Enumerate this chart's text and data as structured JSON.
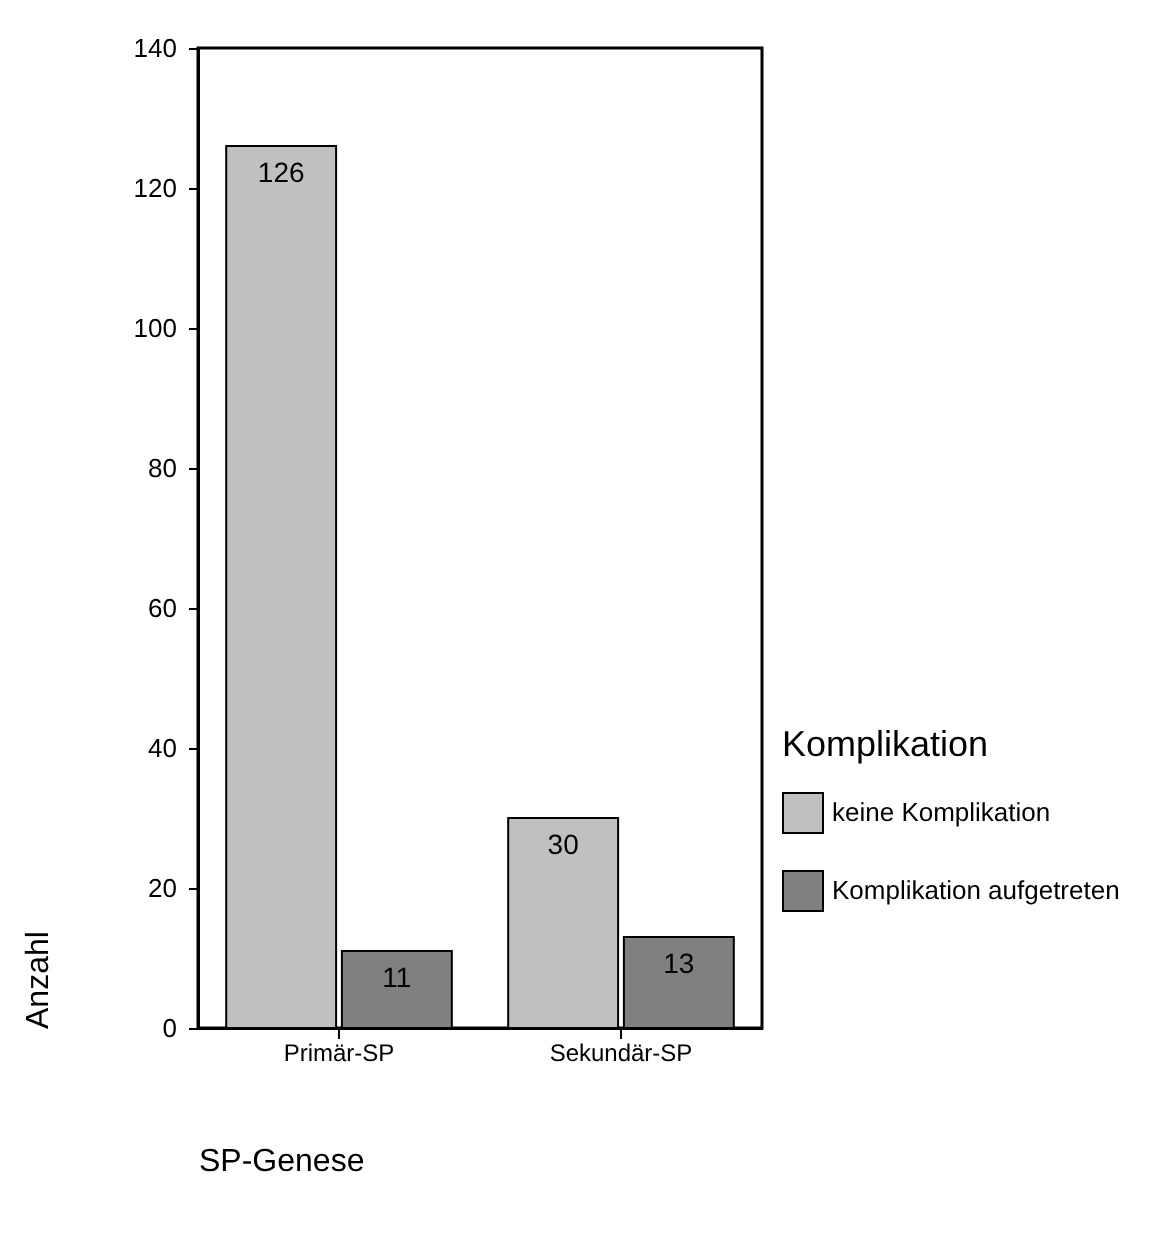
{
  "chart_data": {
    "type": "bar",
    "xlabel": "SP-Genese",
    "ylabel": "Anzahl",
    "legend_title": "Komplikation",
    "categories": [
      "Primär-SP",
      "Sekundär-SP"
    ],
    "series": [
      {
        "name": "keine Komplikation",
        "color": "#c0c0c0",
        "values": [
          126,
          30
        ]
      },
      {
        "name": "Komplikation aufgetreten",
        "color": "#808080",
        "values": [
          11,
          13
        ]
      }
    ],
    "ylim": [
      0,
      140
    ],
    "yticks": [
      0,
      20,
      40,
      60,
      80,
      100,
      120,
      140
    ],
    "grid": false,
    "legend": "right",
    "data_labels": true
  }
}
